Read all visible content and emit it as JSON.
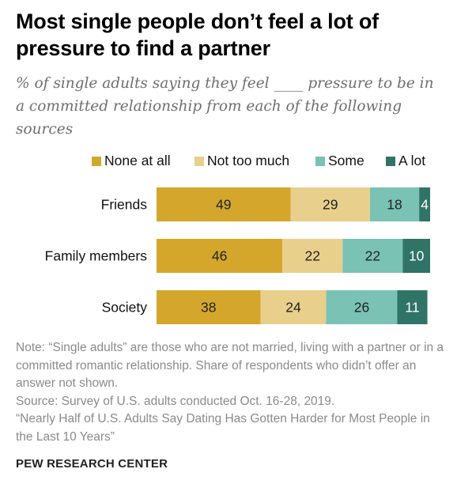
{
  "title": "Most single people don’t feel a lot of pressure to find a partner",
  "subtitle": "% of single adults saying they feel ____ pressure to be in a committed relationship from each of the following sources",
  "notes": {
    "note": "Note: “Single adults” are those who are not married, living with a partner or in a committed romantic relationship. Share of respondents who didn’t offer an answer not shown.",
    "source": "Source: Survey of U.S. adults conducted Oct. 16-28, 2019.",
    "report": "“Nearly Half of U.S. Adults Say Dating Has Gotten Harder for Most People in the Last 10 Years”"
  },
  "brand": "PEW RESEARCH CENTER",
  "chart_data": {
    "type": "bar",
    "orientation": "horizontal",
    "stacked": true,
    "categories": [
      "Friends",
      "Family members",
      "Society"
    ],
    "series": [
      {
        "name": "None at all",
        "values": [
          49,
          46,
          38
        ],
        "color": "#d4a72c"
      },
      {
        "name": "Not too much",
        "values": [
          29,
          22,
          24
        ],
        "color": "#e8cf8c"
      },
      {
        "name": "Some",
        "values": [
          18,
          22,
          26
        ],
        "color": "#79c2b4"
      },
      {
        "name": "A lot",
        "values": [
          4,
          10,
          11
        ],
        "color": "#2f7466"
      }
    ],
    "legend": "top",
    "grid": false,
    "xlim": [
      0,
      100
    ]
  }
}
